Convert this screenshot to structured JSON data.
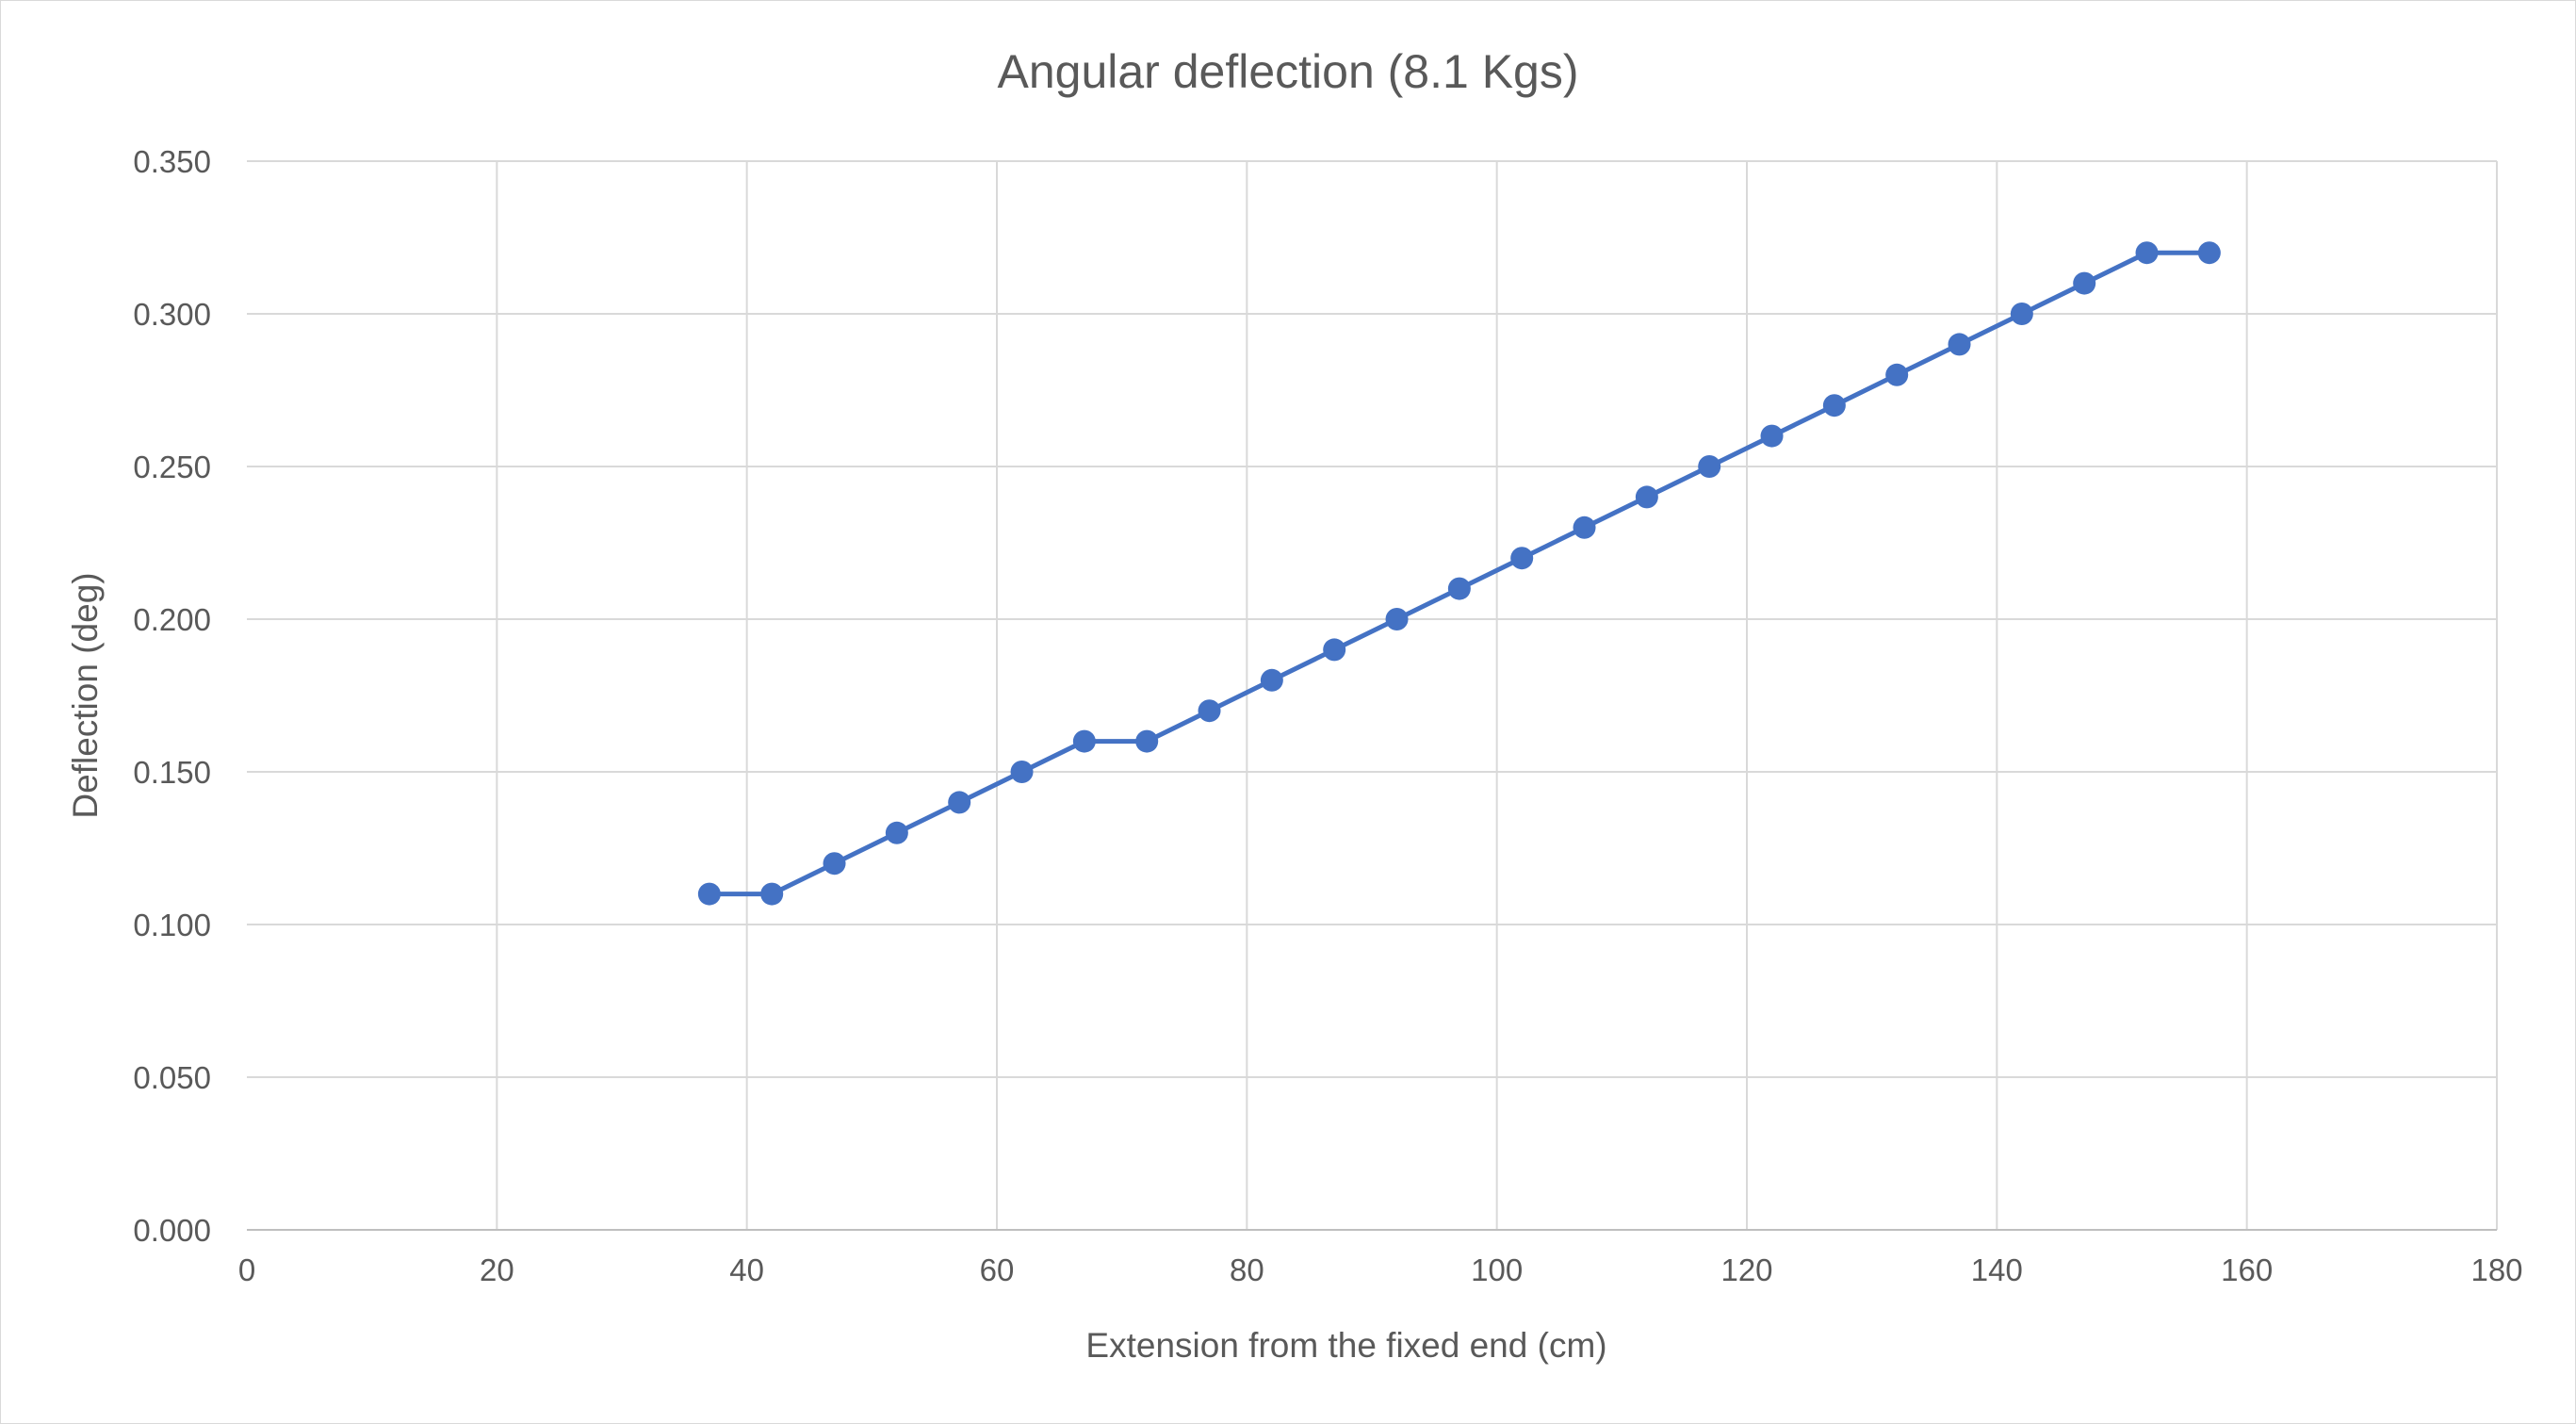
{
  "chart_data": {
    "type": "scatter",
    "title": "Angular deflection (8.1 Kgs)",
    "xlabel": "Extension from the fixed end (cm)",
    "ylabel": "Deflection (deg)",
    "xlim": [
      0,
      180
    ],
    "ylim": [
      0,
      0.35
    ],
    "xticks": [
      "0",
      "20",
      "40",
      "60",
      "80",
      "100",
      "120",
      "140",
      "160",
      "180"
    ],
    "xtick_values": [
      0,
      20,
      40,
      60,
      80,
      100,
      120,
      140,
      160,
      180
    ],
    "yticks": [
      "0.000",
      "0.050",
      "0.100",
      "0.150",
      "0.200",
      "0.250",
      "0.300",
      "0.350"
    ],
    "ytick_values": [
      0,
      0.05,
      0.1,
      0.15,
      0.2,
      0.25,
      0.3,
      0.35
    ],
    "grid": true,
    "legend": "none",
    "series": [
      {
        "color": "#4472c4",
        "marker": "circle",
        "connected": true,
        "x": [
          37,
          42,
          47,
          52,
          57,
          62,
          67,
          72,
          77,
          82,
          87,
          92,
          97,
          102,
          107,
          112,
          117,
          122,
          127,
          132,
          137,
          142,
          147,
          152,
          157
        ],
        "y": [
          0.11,
          0.11,
          0.12,
          0.13,
          0.14,
          0.15,
          0.16,
          0.16,
          0.17,
          0.18,
          0.19,
          0.2,
          0.21,
          0.22,
          0.23,
          0.24,
          0.25,
          0.26,
          0.27,
          0.28,
          0.29,
          0.3,
          0.31,
          0.32,
          0.32
        ]
      }
    ]
  }
}
